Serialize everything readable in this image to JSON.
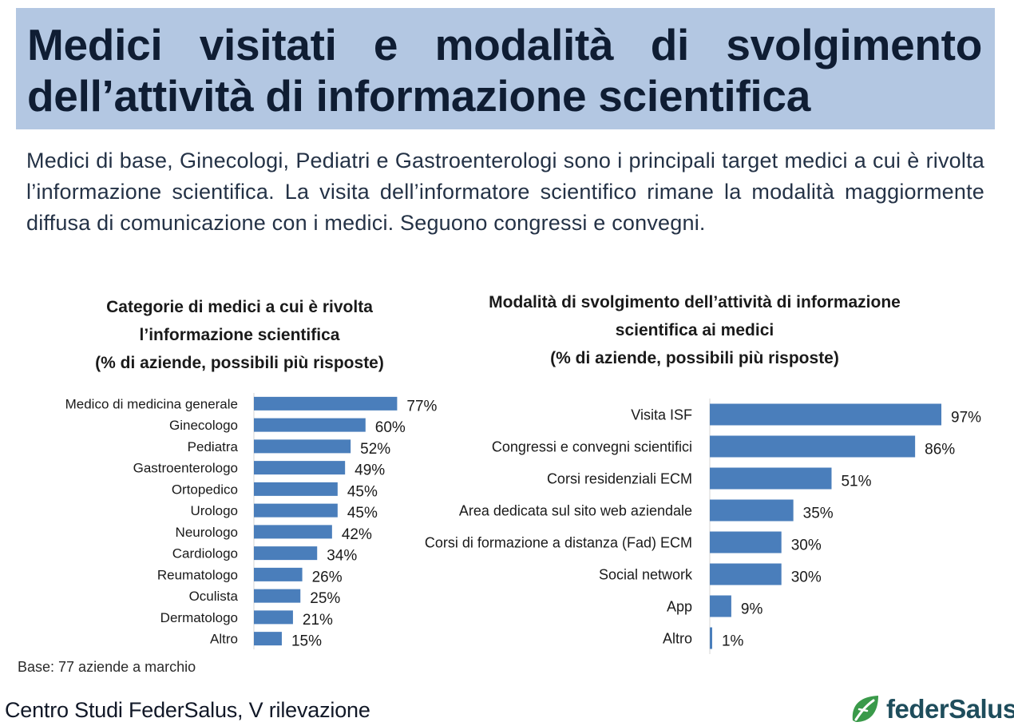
{
  "header": {
    "title": "Medici visitati e modalità di svolgimento dell’attività di informazione scientifica"
  },
  "intro": "Medici di base, Ginecologi, Pediatri e Gastroenterologi sono i principali target medici a cui è rivolta l’informazione scientifica. La visita dell’informatore scientifico rimane la modalità maggiormente diffusa di comunicazione con i medici. Seguono congressi e convegni.",
  "chart_data": [
    {
      "type": "bar",
      "orientation": "horizontal",
      "title_lines": [
        "Categorie di medici a cui è rivolta",
        "l’informazione scientifica",
        "(% di aziende, possibili più risposte)"
      ],
      "categories": [
        "Medico di medicina generale",
        "Ginecologo",
        "Pediatra",
        "Gastroenterologo",
        "Ortopedico",
        "Urologo",
        "Neurologo",
        "Cardiologo",
        "Reumatologo",
        "Oculista",
        "Dermatologo",
        "Altro"
      ],
      "values": [
        77,
        60,
        52,
        49,
        45,
        45,
        42,
        34,
        26,
        25,
        21,
        15
      ],
      "value_labels": [
        "77%",
        "60%",
        "52%",
        "49%",
        "45%",
        "45%",
        "42%",
        "34%",
        "26%",
        "25%",
        "21%",
        "15%"
      ],
      "unit": "%",
      "bar_color": "#4a7ebb",
      "grid": false,
      "legend": "none"
    },
    {
      "type": "bar",
      "orientation": "horizontal",
      "title_lines": [
        "Modalità di svolgimento dell’attività di informazione",
        "scientifica ai medici",
        "(% di aziende, possibili più risposte)"
      ],
      "categories": [
        "Visita ISF",
        "Congressi e convegni scientifici",
        "Corsi residenziali ECM",
        "Area dedicata sul sito web aziendale",
        "Corsi di formazione a distanza (Fad) ECM",
        "Social network",
        "App",
        "Altro"
      ],
      "values": [
        97,
        86,
        51,
        35,
        30,
        30,
        9,
        1
      ],
      "value_labels": [
        "97%",
        "86%",
        "51%",
        "35%",
        "30%",
        "30%",
        "9%",
        "1%"
      ],
      "unit": "%",
      "bar_color": "#4a7ebb",
      "grid": false,
      "legend": "none"
    }
  ],
  "footer": {
    "base_note": "Base: 77 aziende a marchio",
    "source": "Centro Studi FederSalus, V rilevazione",
    "logo_text": "federSalus",
    "logo_icon": "leaf-logo-icon",
    "logo_color": "#3a9a4a"
  }
}
